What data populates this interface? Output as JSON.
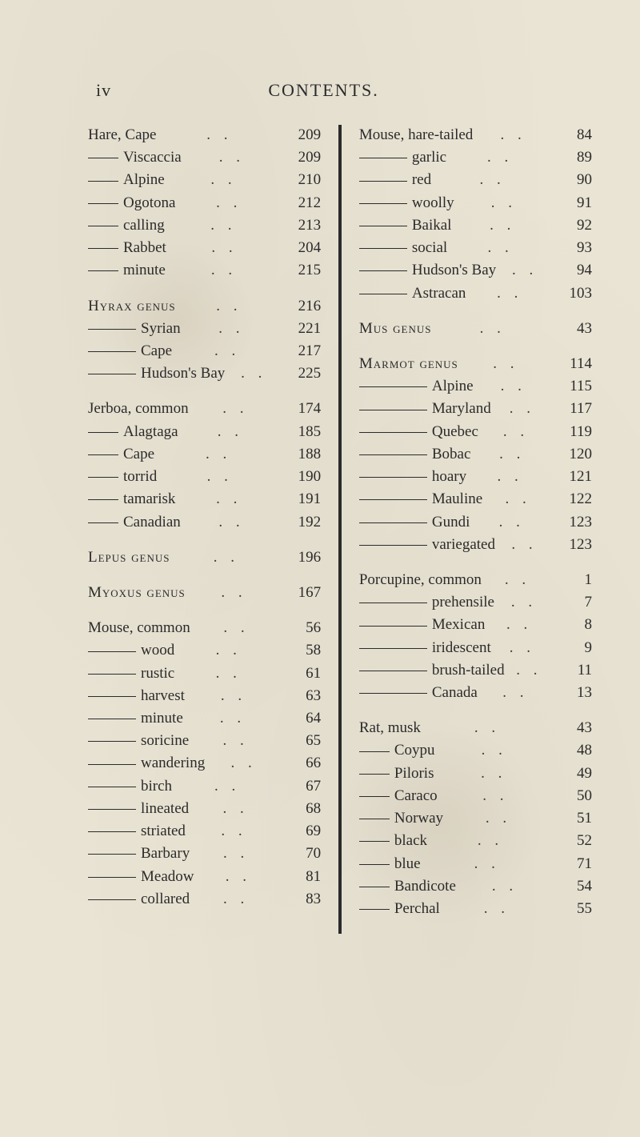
{
  "running_head": {
    "folio": "iv",
    "title": "CONTENTS."
  },
  "dots": ". .",
  "dot": ".",
  "left": {
    "groups": [
      {
        "rows": [
          {
            "dash": "",
            "label": "Hare, Cape",
            "page": "209"
          },
          {
            "dash": "s",
            "label": "Viscaccia",
            "page": "209"
          },
          {
            "dash": "s",
            "label": "Alpine",
            "page": "210"
          },
          {
            "dash": "s",
            "label": "Ogotona",
            "page": "212"
          },
          {
            "dash": "s",
            "label": "calling",
            "page": "213"
          },
          {
            "dash": "s",
            "label": "Rabbet",
            "page": "204"
          },
          {
            "dash": "s",
            "label": "minute",
            "page": "215"
          }
        ]
      },
      {
        "rows": [
          {
            "dash": "",
            "label": "Hyrax genus",
            "sc": true,
            "page": "216"
          },
          {
            "dash": "m",
            "label": "Syrian",
            "page": "221"
          },
          {
            "dash": "m",
            "label": "Cape",
            "page": "217"
          },
          {
            "dash": "m",
            "label": "Hudson's Bay",
            "page": "225"
          }
        ]
      },
      {
        "rows": [
          {
            "dash": "",
            "label": "Jerboa, common",
            "page": "174"
          },
          {
            "dash": "s",
            "label": "Alagtaga",
            "page": "185"
          },
          {
            "dash": "s",
            "label": "Cape",
            "page": "188"
          },
          {
            "dash": "s",
            "label": "torrid",
            "page": "190"
          },
          {
            "dash": "s",
            "label": "tamarisk",
            "page": "191"
          },
          {
            "dash": "s",
            "label": "Canadian",
            "page": "192"
          }
        ]
      },
      {
        "rows": [
          {
            "dash": "",
            "label": "Lepus genus",
            "sc": true,
            "page": "196"
          }
        ]
      },
      {
        "rows": [
          {
            "dash": "",
            "label": "Myoxus genus",
            "sc": true,
            "page": "167"
          }
        ]
      },
      {
        "rows": [
          {
            "dash": "",
            "label": "Mouse, common",
            "page": "56"
          },
          {
            "dash": "m",
            "label": "wood",
            "page": "58"
          },
          {
            "dash": "m",
            "label": "rustic",
            "page": "61"
          },
          {
            "dash": "m",
            "label": "harvest",
            "page": "63"
          },
          {
            "dash": "m",
            "label": "minute",
            "page": "64"
          },
          {
            "dash": "m",
            "label": "soricine",
            "page": "65"
          },
          {
            "dash": "m",
            "label": "wandering",
            "page": "66"
          },
          {
            "dash": "m",
            "label": "birch",
            "page": "67"
          },
          {
            "dash": "m",
            "label": "lineated",
            "page": "68"
          },
          {
            "dash": "m",
            "label": "striated",
            "page": "69"
          },
          {
            "dash": "m",
            "label": "Barbary",
            "page": "70"
          },
          {
            "dash": "m",
            "label": "Meadow",
            "page": "81"
          },
          {
            "dash": "m",
            "label": "collared",
            "page": "83"
          }
        ]
      }
    ]
  },
  "right": {
    "groups": [
      {
        "rows": [
          {
            "dash": "",
            "label": "Mouse, hare-tailed",
            "page": "84"
          },
          {
            "dash": "m",
            "label": "garlic",
            "page": "89"
          },
          {
            "dash": "m",
            "label": "red",
            "page": "90"
          },
          {
            "dash": "m",
            "label": "woolly",
            "page": "91"
          },
          {
            "dash": "m",
            "label": "Baikal",
            "page": "92"
          },
          {
            "dash": "m",
            "label": "social",
            "page": "93"
          },
          {
            "dash": "m",
            "label": "Hudson's Bay",
            "page": "94"
          },
          {
            "dash": "m",
            "label": "Astracan",
            "page": "103"
          }
        ]
      },
      {
        "rows": [
          {
            "dash": "",
            "label": "Mus genus",
            "sc": true,
            "page": "43"
          }
        ]
      },
      {
        "rows": [
          {
            "dash": "",
            "label": "Marmot genus",
            "sc": true,
            "page": "114"
          },
          {
            "dash": "l",
            "label": "Alpine",
            "page": "115"
          },
          {
            "dash": "l",
            "label": "Maryland",
            "page": "117"
          },
          {
            "dash": "l",
            "label": "Quebec",
            "page": "119"
          },
          {
            "dash": "l",
            "label": "Bobac",
            "page": "120"
          },
          {
            "dash": "l",
            "label": "hoary",
            "page": "121"
          },
          {
            "dash": "l",
            "label": "Mauline",
            "page": "122"
          },
          {
            "dash": "l",
            "label": "Gundi",
            "page": "123"
          },
          {
            "dash": "l",
            "label": "variegated",
            "page": "123"
          }
        ]
      },
      {
        "rows": [
          {
            "dash": "",
            "label": "Porcupine, common",
            "page": "1"
          },
          {
            "dash": "l",
            "label": "prehensile",
            "page": "7"
          },
          {
            "dash": "l",
            "label": "Mexican",
            "page": "8"
          },
          {
            "dash": "l",
            "label": "iridescent",
            "page": "9"
          },
          {
            "dash": "l",
            "label": "brush-tailed",
            "page": "11"
          },
          {
            "dash": "l",
            "label": "Canada",
            "page": "13"
          }
        ]
      },
      {
        "rows": [
          {
            "dash": "",
            "label": "Rat, musk",
            "page": "43"
          },
          {
            "dash": "s",
            "label": "Coypu",
            "page": "48"
          },
          {
            "dash": "s",
            "label": "Piloris",
            "page": "49"
          },
          {
            "dash": "s",
            "label": "Caraco",
            "page": "50"
          },
          {
            "dash": "s",
            "label": "Norway",
            "page": "51"
          },
          {
            "dash": "s",
            "label": "black",
            "page": "52"
          },
          {
            "dash": "s",
            "label": "blue",
            "page": "71"
          },
          {
            "dash": "s",
            "label": "Bandicote",
            "page": "54"
          },
          {
            "dash": "s",
            "label": "Perchal",
            "page": "55"
          }
        ]
      }
    ]
  }
}
